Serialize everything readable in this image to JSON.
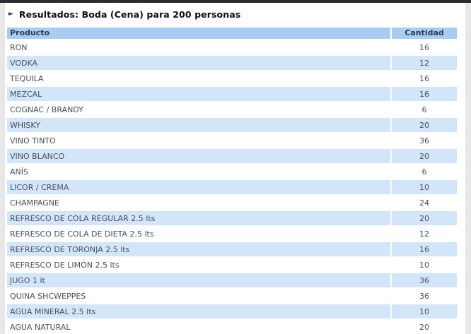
{
  "colors": {
    "top_bar": "#2a2b33",
    "accent_arrow": "#22365e",
    "header_bg": "#a9cdf1",
    "alt_row_bg": "#d3e6f9",
    "page_edge": "#e8e8e8"
  },
  "section": {
    "arrow_glyph": "►",
    "title": "Resultados: Boda (Cena) para 200 personas"
  },
  "table": {
    "columns": [
      "Producto",
      "Cantidad"
    ],
    "rows": [
      {
        "producto": "RON",
        "cantidad": "16"
      },
      {
        "producto": "VODKA",
        "cantidad": "12"
      },
      {
        "producto": "TEQUILA",
        "cantidad": "16"
      },
      {
        "producto": "MEZCAL",
        "cantidad": "16"
      },
      {
        "producto": "COGNAC / BRANDY",
        "cantidad": "6"
      },
      {
        "producto": "WHISKY",
        "cantidad": "20"
      },
      {
        "producto": "VINO TINTO",
        "cantidad": "36"
      },
      {
        "producto": "VINO BLANCO",
        "cantidad": "20"
      },
      {
        "producto": "ANÍS",
        "cantidad": "6"
      },
      {
        "producto": "LICOR / CREMA",
        "cantidad": "10"
      },
      {
        "producto": "CHAMPAGNE",
        "cantidad": "24"
      },
      {
        "producto": "REFRESCO DE COLA REGULAR 2.5 lts",
        "cantidad": "20"
      },
      {
        "producto": "REFRESCO DE COLA DE DIETA 2.5 lts",
        "cantidad": "12"
      },
      {
        "producto": "REFRESCO DE TORONJA 2.5 lts",
        "cantidad": "16"
      },
      {
        "producto": "REFRESCO DE LIMÓN 2.5 lts",
        "cantidad": "10"
      },
      {
        "producto": "JUGO 1 lt",
        "cantidad": "36"
      },
      {
        "producto": "QUINA SHCWEPPES",
        "cantidad": "36"
      },
      {
        "producto": "AGUA MINERAL 2.5 lts",
        "cantidad": "10"
      },
      {
        "producto": "AGUA NATURAL",
        "cantidad": "20"
      }
    ]
  }
}
